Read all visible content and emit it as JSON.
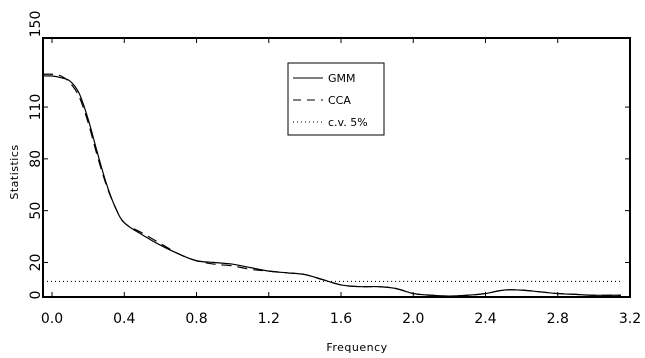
{
  "chart_data": {
    "type": "line",
    "xlabel": "Frequency",
    "ylabel": "Statistics",
    "xlim": [
      -0.05,
      3.2
    ],
    "ylim": [
      0,
      150
    ],
    "x_ticks": [
      "0.0",
      "0.4",
      "0.8",
      "1.2",
      "1.6",
      "2.0",
      "2.4",
      "2.8",
      "3.2"
    ],
    "x_tick_values": [
      0.0,
      0.4,
      0.8,
      1.2,
      1.6,
      2.0,
      2.4,
      2.8,
      3.2
    ],
    "y_ticks": [
      "0",
      "20",
      "50",
      "80",
      "110",
      "150"
    ],
    "y_tick_values": [
      0,
      20,
      50,
      80,
      110,
      150
    ],
    "grid": false,
    "legend_position": "top-center",
    "series": [
      {
        "name": "GMM",
        "style": "solid",
        "color": "#000000",
        "x": [
          -0.05,
          0.0,
          0.05,
          0.1,
          0.15,
          0.2,
          0.25,
          0.3,
          0.35,
          0.4,
          0.5,
          0.6,
          0.7,
          0.8,
          0.9,
          1.0,
          1.1,
          1.2,
          1.3,
          1.4,
          1.5,
          1.6,
          1.7,
          1.8,
          1.9,
          2.0,
          2.1,
          2.2,
          2.3,
          2.4,
          2.5,
          2.6,
          2.7,
          2.8,
          2.9,
          3.0,
          3.1,
          3.15
        ],
        "y": [
          128,
          128,
          127,
          125,
          118,
          103,
          84,
          66,
          52,
          43,
          36,
          30,
          25,
          21,
          20,
          19,
          17,
          15,
          14,
          13,
          10,
          7,
          6,
          6,
          5,
          2,
          1,
          0.5,
          1,
          2,
          4,
          4,
          3,
          2,
          1.5,
          1,
          1,
          1
        ]
      },
      {
        "name": "CCA",
        "style": "dashed",
        "color": "#000000",
        "x": [
          -0.05,
          0.0,
          0.05,
          0.1,
          0.15,
          0.2,
          0.25,
          0.3,
          0.35,
          0.4,
          0.5,
          0.6,
          0.7,
          0.8,
          0.9,
          1.0,
          1.1,
          1.2,
          1.3,
          1.4,
          1.5,
          1.6,
          1.7,
          1.8,
          1.9,
          2.0,
          2.1,
          2.2,
          2.3,
          2.4,
          2.5,
          2.6,
          2.7,
          2.8,
          2.9,
          3.0,
          3.1,
          3.15
        ],
        "y": [
          129,
          129,
          128,
          124,
          116,
          101,
          82,
          65,
          52,
          43,
          37,
          31,
          25,
          21,
          19,
          18,
          16,
          15,
          14,
          13,
          10,
          7,
          6,
          6,
          5,
          2,
          1,
          0.5,
          1,
          2,
          4,
          4,
          3,
          2,
          1.5,
          1,
          1,
          1
        ]
      },
      {
        "name": "c.v. 5%",
        "style": "dotted",
        "color": "#000000",
        "x": [
          -0.05,
          3.15
        ],
        "y": [
          9,
          9
        ]
      }
    ]
  }
}
